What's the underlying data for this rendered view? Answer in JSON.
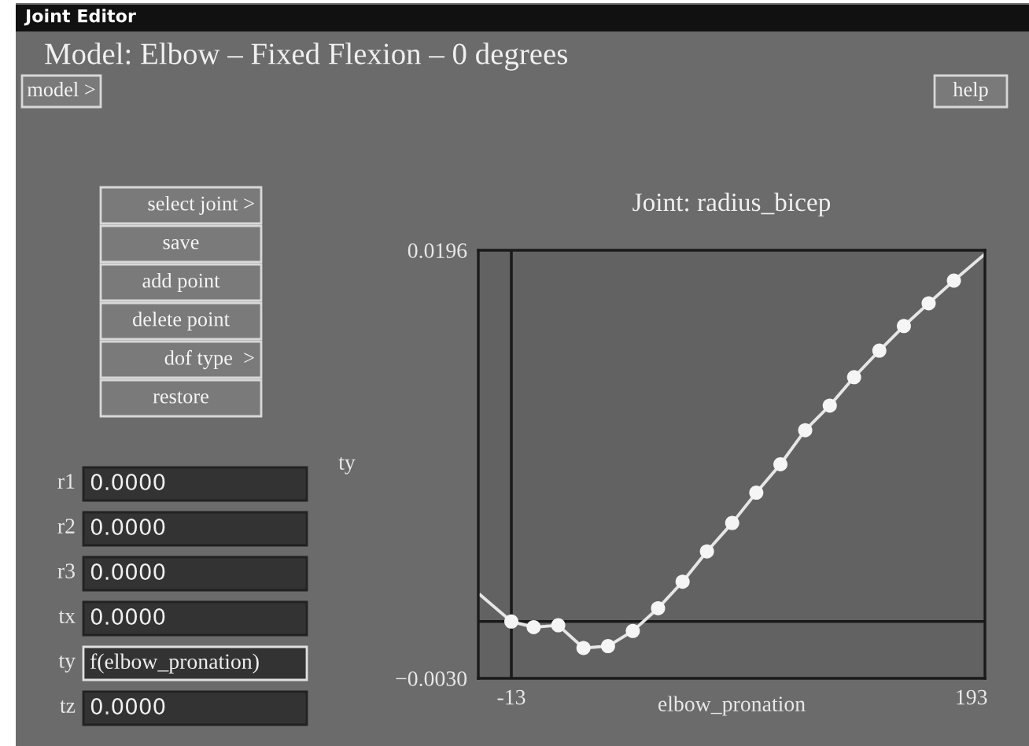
{
  "chart_data": [
    {
      "type": "other",
      "title": "Model: Elbow – Fixed Flexion – 0 degrees",
      "annotations": [
        "Joint Editor",
        "model >",
        "help",
        "select joint >",
        "save",
        "add point",
        "delete point",
        "dof type  >",
        "restore",
        "r1",
        "0.0000",
        "r2",
        "0.0000",
        "r3",
        "0.0000",
        "tx",
        "0.0000",
        "ty",
        "f(elbow_pronation)",
        "tz",
        "0.0000"
      ]
    },
    {
      "type": "line",
      "title": "Joint: radius_bicep",
      "xlabel": "elbow_pronation",
      "ylabel": "ty",
      "xlim": [
        -27.8,
        199.1
      ],
      "xticks": [
        -13,
        193
      ],
      "ylim": [
        -0.003,
        0.0196
      ],
      "yticks": [
        {
          "value": -0.003,
          "label": "−0.0030"
        },
        0.0196
      ],
      "grid": false,
      "legend": false,
      "ref_lines": [
        {
          "axis": "x",
          "value": -13,
          "color": "#1a1a1a"
        },
        {
          "axis": "y",
          "value": 0,
          "color": "#1a1a1a"
        }
      ],
      "series": [
        {
          "type": "line",
          "marker": "none",
          "color": "#e6e6e6",
          "x": [
            -26.9,
            -13,
            -3,
            8,
            19.3,
            30.3,
            41.4,
            52.7,
            63.7,
            74.6,
            85.9,
            96.7,
            107.5,
            118.6,
            129.6,
            140.5,
            151.8,
            162.8,
            173.9,
            185.2,
            199.1
          ],
          "values": [
            0.0014,
            0.0,
            -0.0003,
            -0.0002,
            -0.0014,
            -0.0013,
            -0.0005,
            0.0007,
            0.0021,
            0.0037,
            0.0052,
            0.0068,
            0.0083,
            0.0101,
            0.0114,
            0.0129,
            0.0143,
            0.0156,
            0.0168,
            0.018,
            0.0194
          ]
        },
        {
          "type": "scatter",
          "marker": "circle",
          "color": "#f5f5f5",
          "x": [
            -13,
            -3,
            8,
            19.3,
            30.3,
            41.4,
            52.7,
            63.7,
            74.6,
            85.9,
            96.7,
            107.5,
            118.6,
            129.6,
            140.5,
            151.8,
            162.8,
            173.9,
            185.2
          ],
          "values": [
            0.0,
            -0.0003,
            -0.0002,
            -0.0014,
            -0.0013,
            -0.0005,
            0.0007,
            0.0021,
            0.0037,
            0.0052,
            0.0068,
            0.0083,
            0.0101,
            0.0114,
            0.0129,
            0.0143,
            0.0156,
            0.0168,
            0.018
          ]
        }
      ]
    }
  ]
}
